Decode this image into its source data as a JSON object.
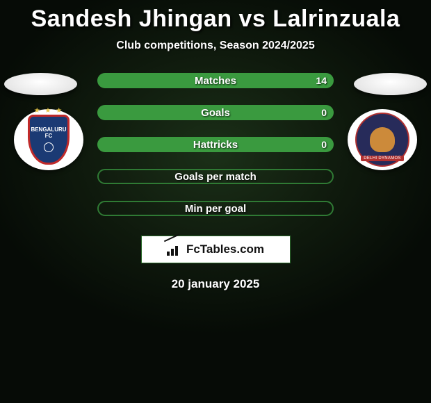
{
  "title": "Sandesh Jhingan vs Lalrinzuala",
  "subtitle": "Club competitions, Season 2024/2025",
  "date": "20 january 2025",
  "brand": "FcTables.com",
  "colors": {
    "player_left": "#4aa3e0",
    "player_right": "#3a9a3f",
    "bar_border": "#2f7a34",
    "oval_bg": "#f1f1f1"
  },
  "crests": {
    "left": {
      "name": "BENGALURU",
      "sub": "FC"
    },
    "right": {
      "name": "DELHI DYNAMOS"
    }
  },
  "stats": [
    {
      "label": "Matches",
      "left_val": "",
      "right_val": "14",
      "left_pct": 0,
      "right_pct": 100,
      "empty": false
    },
    {
      "label": "Goals",
      "left_val": "",
      "right_val": "0",
      "left_pct": 0,
      "right_pct": 100,
      "empty": false
    },
    {
      "label": "Hattricks",
      "left_val": "",
      "right_val": "0",
      "left_pct": 0,
      "right_pct": 100,
      "empty": false
    },
    {
      "label": "Goals per match",
      "left_val": "",
      "right_val": "",
      "left_pct": 0,
      "right_pct": 0,
      "empty": true
    },
    {
      "label": "Min per goal",
      "left_val": "",
      "right_val": "",
      "left_pct": 0,
      "right_pct": 0,
      "empty": true
    }
  ]
}
